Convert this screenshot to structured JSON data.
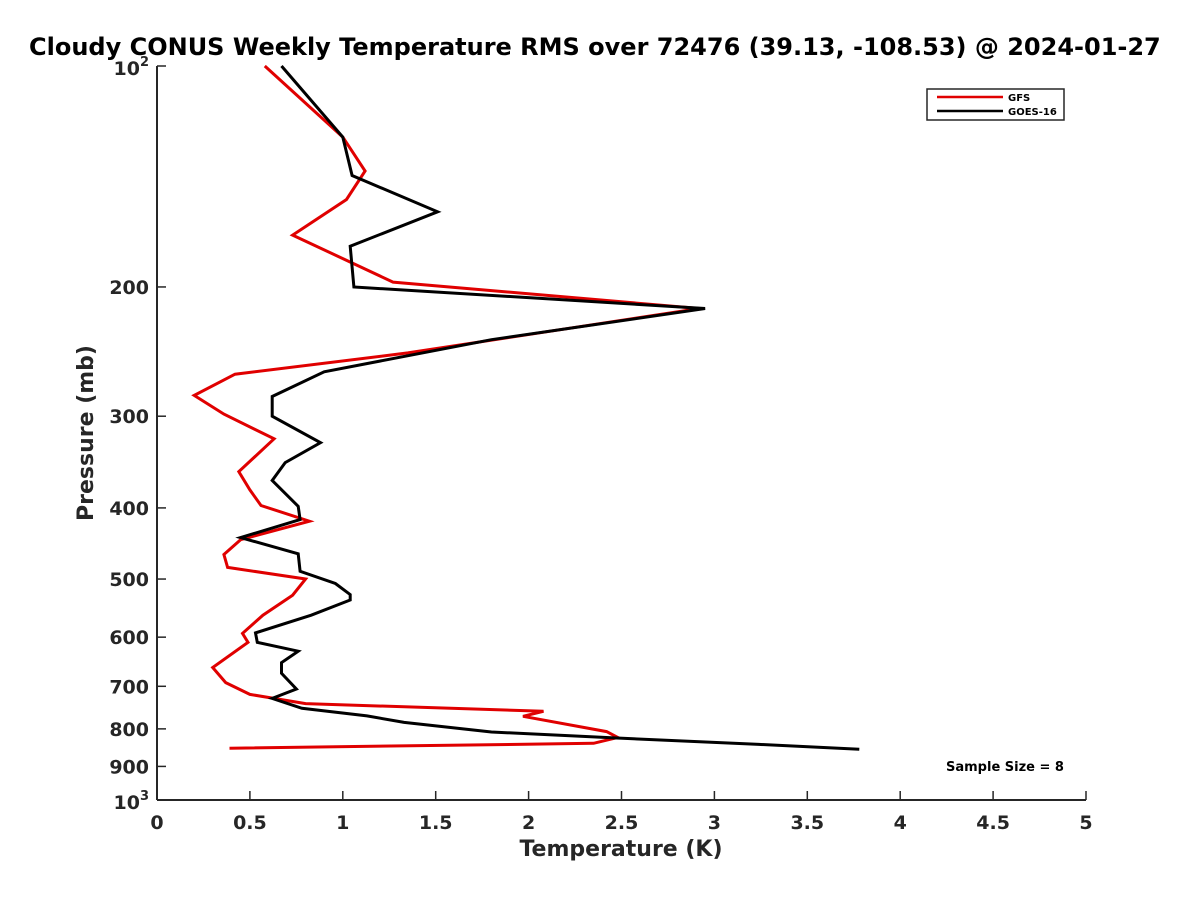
{
  "chart_data": {
    "type": "line",
    "title": "Cloudy CONUS Weekly Temperature RMS over 72476 (39.13, -108.53) @ 2024-01-27",
    "xlabel": "Temperature (K)",
    "ylabel": "Pressure (mb)",
    "xlim": [
      0,
      5
    ],
    "ylim": [
      100,
      1000
    ],
    "y_scale": "log",
    "y_reversed": true,
    "grid": false,
    "legend_position": "top-right",
    "x_ticks": [
      "0",
      "0.5",
      "1",
      "1.5",
      "2",
      "2.5",
      "3",
      "3.5",
      "4",
      "4.5",
      "5"
    ],
    "x_tick_values": [
      0,
      0.5,
      1,
      1.5,
      2,
      2.5,
      3,
      3.5,
      4,
      4.5,
      5
    ],
    "y_ticks": [
      {
        "value": 100,
        "base": "10",
        "exp": "2"
      },
      {
        "value": 200,
        "label": "200"
      },
      {
        "value": 300,
        "label": "300"
      },
      {
        "value": 400,
        "label": "400"
      },
      {
        "value": 500,
        "label": "500"
      },
      {
        "value": 600,
        "label": "600"
      },
      {
        "value": 700,
        "label": "700"
      },
      {
        "value": 800,
        "label": "800"
      },
      {
        "value": 900,
        "label": "900"
      },
      {
        "value": 1000,
        "base": "10",
        "exp": "3"
      }
    ],
    "annotation": "Sample Size = 8",
    "series": [
      {
        "name": "GFS",
        "color": "#e00000",
        "points": [
          [
            0.58,
            100
          ],
          [
            1.0,
            125
          ],
          [
            1.12,
            139
          ],
          [
            1.02,
            152
          ],
          [
            0.73,
            170
          ],
          [
            1.27,
            197
          ],
          [
            2.92,
            214
          ],
          [
            1.35,
            246
          ],
          [
            0.42,
            263
          ],
          [
            0.2,
            281
          ],
          [
            0.36,
            298
          ],
          [
            0.63,
            322
          ],
          [
            0.44,
            357
          ],
          [
            0.5,
            378
          ],
          [
            0.56,
            397
          ],
          [
            0.82,
            417
          ],
          [
            0.45,
            442
          ],
          [
            0.36,
            463
          ],
          [
            0.38,
            482
          ],
          [
            0.8,
            500
          ],
          [
            0.73,
            526
          ],
          [
            0.57,
            560
          ],
          [
            0.46,
            593
          ],
          [
            0.49,
            610
          ],
          [
            0.3,
            660
          ],
          [
            0.37,
            692
          ],
          [
            0.5,
            718
          ],
          [
            0.8,
            739
          ],
          [
            2.08,
            757
          ],
          [
            1.97,
            769
          ],
          [
            2.42,
            807
          ],
          [
            2.48,
            822
          ],
          [
            2.35,
            837
          ],
          [
            0.39,
            850
          ]
        ]
      },
      {
        "name": "GOES-16",
        "color": "#000000",
        "points": [
          [
            0.67,
            100
          ],
          [
            1.0,
            125
          ],
          [
            1.05,
            141
          ],
          [
            1.51,
            158
          ],
          [
            1.04,
            176
          ],
          [
            1.06,
            200
          ],
          [
            2.95,
            214
          ],
          [
            1.8,
            236
          ],
          [
            0.9,
            261
          ],
          [
            0.62,
            282
          ],
          [
            0.62,
            300
          ],
          [
            0.88,
            326
          ],
          [
            0.69,
            347
          ],
          [
            0.62,
            367
          ],
          [
            0.76,
            398
          ],
          [
            0.77,
            415
          ],
          [
            0.45,
            439
          ],
          [
            0.76,
            462
          ],
          [
            0.77,
            488
          ],
          [
            0.96,
            507
          ],
          [
            1.04,
            525
          ],
          [
            1.04,
            534
          ],
          [
            0.83,
            560
          ],
          [
            0.53,
            592
          ],
          [
            0.54,
            610
          ],
          [
            0.76,
            627
          ],
          [
            0.67,
            650
          ],
          [
            0.67,
            672
          ],
          [
            0.75,
            706
          ],
          [
            0.62,
            727
          ],
          [
            0.78,
            750
          ],
          [
            1.13,
            768
          ],
          [
            1.33,
            784
          ],
          [
            1.8,
            808
          ],
          [
            2.46,
            823
          ],
          [
            3.24,
            840
          ],
          [
            3.78,
            853
          ]
        ]
      }
    ]
  }
}
